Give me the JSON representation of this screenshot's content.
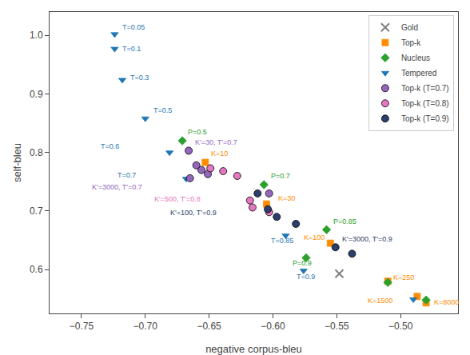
{
  "chart_data": {
    "type": "scatter",
    "xlabel": "negative corpus-bleu",
    "ylabel": "self-bleu",
    "xlim": [
      -0.775,
      -0.455
    ],
    "ylim": [
      0.525,
      1.04
    ],
    "xticks": [
      {
        "value": -0.75,
        "label": "−0.75"
      },
      {
        "value": -0.7,
        "label": "−0.70"
      },
      {
        "value": -0.65,
        "label": "−0.65"
      },
      {
        "value": -0.6,
        "label": "−0.60"
      },
      {
        "value": -0.55,
        "label": "−0.55"
      },
      {
        "value": -0.5,
        "label": "−0.50"
      }
    ],
    "yticks": [
      0.6,
      0.7,
      0.8,
      0.9,
      {
        "value": 1.0,
        "label": "1.0"
      }
    ],
    "grid": false,
    "legend": "upper right",
    "series": [
      {
        "name": "Gold",
        "color": "gray",
        "marker": "x",
        "x": [
          -0.548
        ],
        "y": [
          0.593
        ],
        "labels": [
          null
        ]
      },
      {
        "name": "Top-k",
        "color": "#ff8c00",
        "marker": "square",
        "x": [
          -0.653,
          -0.605,
          -0.555,
          -0.51,
          -0.487,
          -0.48
        ],
        "y": [
          0.783,
          0.712,
          0.645,
          0.58,
          0.554,
          0.543
        ],
        "labels": [
          "K=10",
          "K=30",
          "K=100",
          "K=250",
          "K=1500",
          "K=8000"
        ]
      },
      {
        "name": "Nucleus",
        "color": "#2ca02c",
        "marker": "diamond",
        "x": [
          -0.671,
          -0.607,
          -0.558,
          -0.574,
          -0.51,
          -0.48
        ],
        "y": [
          0.82,
          0.745,
          0.668,
          0.62,
          0.578,
          0.548
        ],
        "labels": [
          "P=0.5",
          "P=0.7",
          "P=0.85",
          "P=0.9",
          null,
          null
        ]
      },
      {
        "name": "Tempered",
        "color": "#1f77b4",
        "marker": "triangle-down",
        "x": [
          -0.724,
          -0.724,
          -0.718,
          -0.7,
          -0.681,
          -0.668,
          -0.59,
          -0.576,
          -0.49
        ],
        "y": [
          1.002,
          0.977,
          0.924,
          0.858,
          0.8,
          0.755,
          0.658,
          0.598,
          0.549
        ],
        "labels": [
          "T=0.05",
          "T=0.1",
          "T=0.3",
          "T=0.5",
          "T=0.6",
          "T=0.7",
          "T=0.85",
          "T=0.9",
          null
        ]
      },
      {
        "name": "Top-k (T=0.7)",
        "color": "#9467bd",
        "marker": "circle",
        "x": [
          -0.666,
          -0.66,
          -0.656,
          -0.651,
          -0.665,
          -0.603
        ],
        "y": [
          0.803,
          0.778,
          0.77,
          0.763,
          0.756,
          0.73
        ],
        "labels": [
          "K'=30, T'=0.7",
          null,
          null,
          null,
          "K'=3000, T'=0.7",
          null
        ]
      },
      {
        "name": "Top-k (T=0.8)",
        "color": "#e377c2",
        "marker": "circle",
        "x": [
          -0.649,
          -0.639,
          -0.628,
          -0.618,
          -0.616,
          -0.603
        ],
        "y": [
          0.773,
          0.768,
          0.76,
          0.718,
          0.706,
          0.698
        ],
        "labels": [
          null,
          null,
          null,
          null,
          "K'=500, T'=0.8",
          null
        ]
      },
      {
        "name": "Top-k (T=0.9)",
        "color": "#2c3e6b",
        "marker": "circle",
        "x": [
          -0.612,
          -0.604,
          -0.597,
          -0.582,
          -0.551,
          -0.538
        ],
        "y": [
          0.73,
          0.703,
          0.69,
          0.678,
          0.638,
          0.627
        ],
        "labels": [
          null,
          "K'=100, T'=0.9",
          null,
          null,
          "K'=3000, T'=0.9",
          null
        ]
      }
    ]
  }
}
